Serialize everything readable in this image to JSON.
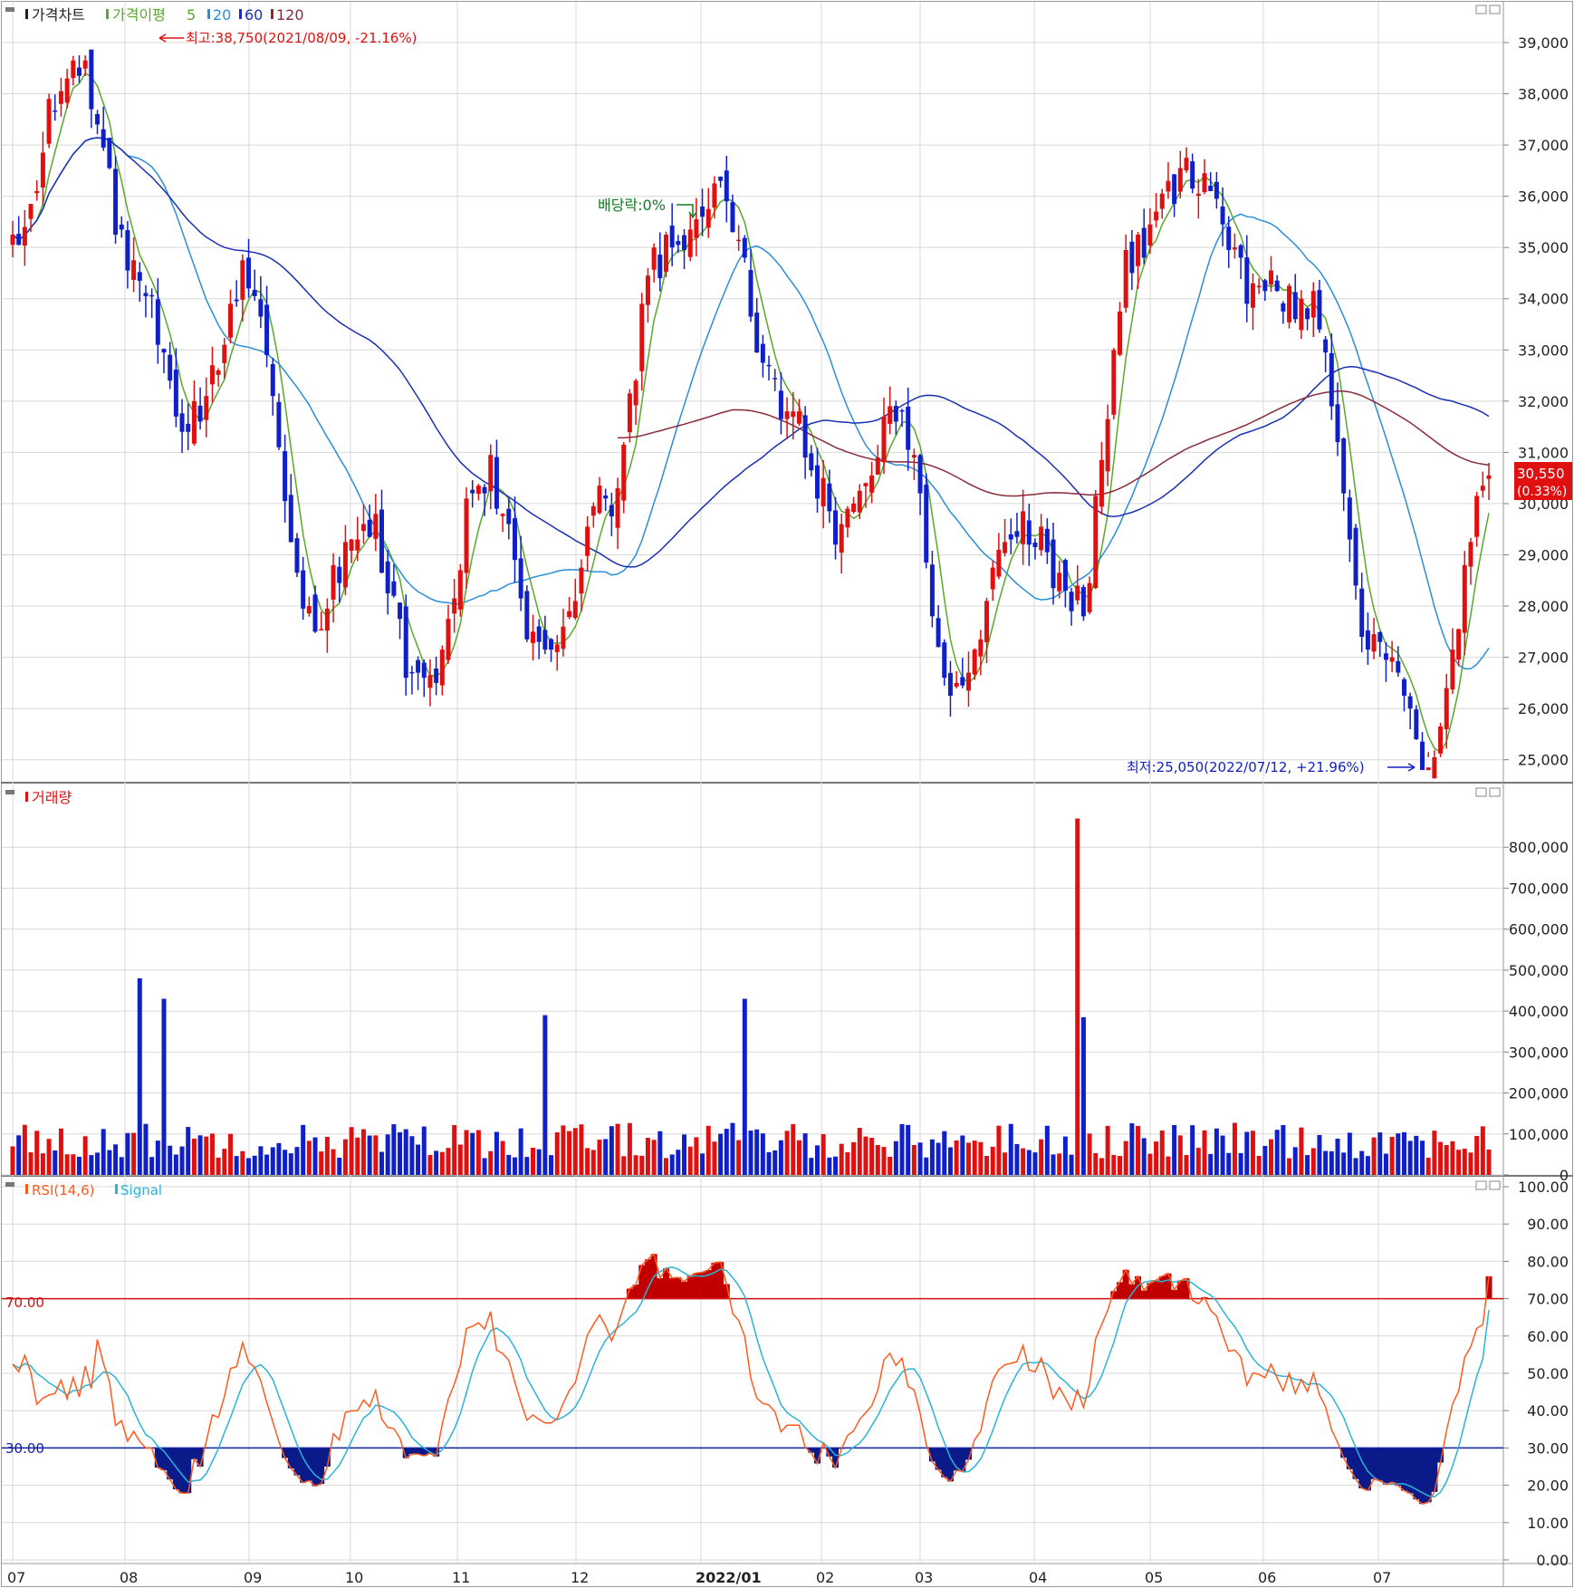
{
  "panels": {
    "price": {
      "title": "가격차트",
      "ma_legend_label": "가격이평",
      "ma_periods": [
        "5",
        "20",
        "60",
        "120"
      ],
      "ma_colors": [
        "#5aa82a",
        "#2a8fd8",
        "#1a2fb4",
        "#8a2b3a"
      ],
      "y_ticks": [
        "39,000",
        "38,000",
        "37,000",
        "36,000",
        "35,000",
        "34,000",
        "33,000",
        "32,000",
        "31,000",
        "30,000",
        "29,000",
        "28,000",
        "27,000",
        "26,000",
        "25,000"
      ],
      "high_annotation": "최고:38,750(2021/08/09, -21.16%)",
      "low_annotation": "최저:25,050(2022/07/12, +21.96%)",
      "dividend_annotation": "배당락:0%",
      "last_price": "30,550",
      "last_change": "(0.33%)"
    },
    "volume": {
      "title": "거래량",
      "y_ticks": [
        "800,000",
        "700,000",
        "600,000",
        "500,000",
        "400,000",
        "300,000",
        "200,000",
        "100,000",
        "0"
      ]
    },
    "rsi": {
      "title": "RSI(14,6)",
      "signal_label": "Signal",
      "upper_level_label": "70.00",
      "lower_level_label": "30.00",
      "y_ticks": [
        "100.00",
        "90.00",
        "80.00",
        "70.00",
        "60.00",
        "50.00",
        "40.00",
        "30.00",
        "20.00",
        "10.00",
        "0.00"
      ]
    }
  },
  "x_axis_labels": [
    "07",
    "08",
    "09",
    "10",
    "11",
    "12",
    "2022/01",
    "02",
    "03",
    "04",
    "05",
    "06",
    "07"
  ],
  "colors": {
    "up": "#e01010",
    "down": "#1020c8",
    "rsi_line": "#ff5a1e",
    "signal_line": "#2ab4d8",
    "upper_level": "#d01010",
    "lower_level": "#1020a0",
    "grid": "#d8d8d8",
    "axis": "#808080"
  },
  "chart_data": [
    {
      "type": "candlestick",
      "title": "가격차트",
      "x_range": [
        "2021-07",
        "2022-07"
      ],
      "ylim": [
        24800,
        39300
      ],
      "x_month_labels": [
        "07",
        "08",
        "09",
        "10",
        "11",
        "12",
        "2022/01",
        "02",
        "03",
        "04",
        "05",
        "06",
        "07"
      ],
      "monthly_close_path": [
        {
          "month": "07",
          "price": 35300
        },
        {
          "month": "08",
          "price": 38750
        },
        {
          "month": "08",
          "price": 34800
        },
        {
          "month": "09",
          "price": 31500
        },
        {
          "month": "09",
          "price": 34500
        },
        {
          "month": "10",
          "price": 27800
        },
        {
          "month": "10",
          "price": 29500
        },
        {
          "month": "11",
          "price": 26200
        },
        {
          "month": "11",
          "price": 30600
        },
        {
          "month": "12",
          "price": 27000
        },
        {
          "month": "12",
          "price": 30000
        },
        {
          "month": "12",
          "price": 34800
        },
        {
          "month": "2022/01",
          "price": 36000
        },
        {
          "month": "2022/01",
          "price": 32000
        },
        {
          "month": "02",
          "price": 29600
        },
        {
          "month": "02",
          "price": 31800
        },
        {
          "month": "03",
          "price": 26300
        },
        {
          "month": "03",
          "price": 29800
        },
        {
          "month": "04",
          "price": 28000
        },
        {
          "month": "04",
          "price": 34800
        },
        {
          "month": "05",
          "price": 36400
        },
        {
          "month": "05",
          "price": 34200
        },
        {
          "month": "06",
          "price": 33700
        },
        {
          "month": "06",
          "price": 27500
        },
        {
          "month": "07",
          "price": 25050
        },
        {
          "month": "07",
          "price": 30550
        }
      ],
      "high": {
        "date": "2021/08/09",
        "price": 38750,
        "change_pct": -21.16
      },
      "low": {
        "date": "2022/07/12",
        "price": 25050,
        "change_pct": 21.96
      },
      "last": {
        "price": 30550,
        "change_pct": 0.33
      },
      "moving_averages": [
        5,
        20,
        60,
        120
      ],
      "ma_end_values": {
        "5": 30300,
        "20": 28100,
        "60": 31600,
        "120": 31000
      }
    },
    {
      "type": "bar",
      "title": "거래량",
      "ylim": [
        0,
        900000
      ],
      "peaks": [
        {
          "month": "08",
          "value": 480000
        },
        {
          "month": "08",
          "value": 430000
        },
        {
          "month": "11",
          "value": 390000
        },
        {
          "month": "12",
          "value": 430000
        },
        {
          "month": "04",
          "value": 870000
        },
        {
          "month": "04",
          "value": 385000
        }
      ],
      "typical_value": 80000
    },
    {
      "type": "line",
      "title": "RSI(14,6)",
      "series": [
        {
          "name": "RSI(14,6)"
        },
        {
          "name": "Signal"
        }
      ],
      "ylim": [
        0,
        100
      ],
      "levels": [
        70,
        30
      ],
      "overbought_months": [
        "12",
        "2022/01",
        "04",
        "07"
      ],
      "oversold_months": [
        "08",
        "10",
        "06",
        "07"
      ],
      "last_rsi": 76,
      "last_signal": 67
    }
  ]
}
